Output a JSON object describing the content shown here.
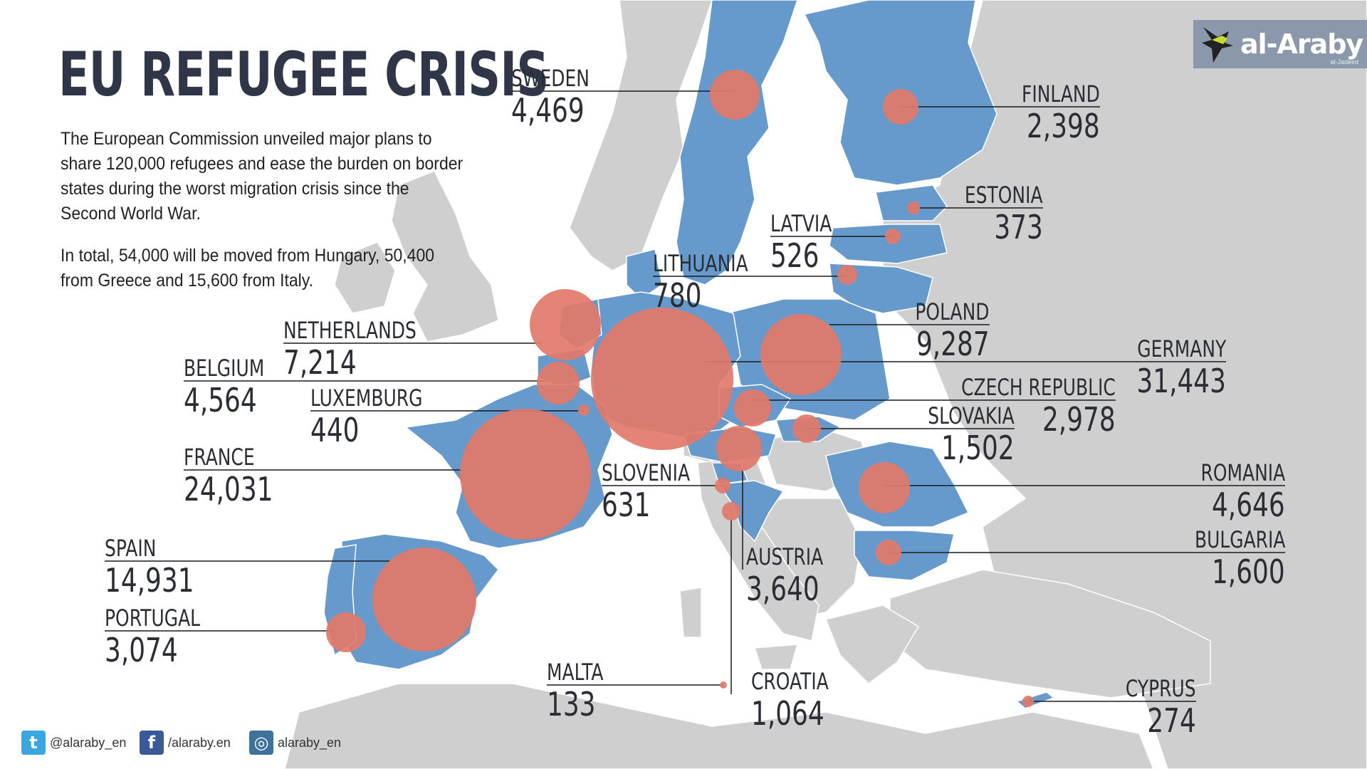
{
  "title": "EU REFUGEE CRISIS",
  "intro": [
    "The European Commission unveiled major plans to share 120,000 refugees and ease the burden on border states during the worst migration crisis since the Second World War.",
    "In total, 54,000 will be moved from Hungary, 50,400 from Greece and 15,600 from Italy."
  ],
  "colors": {
    "land": "#cfcfcf",
    "sea": "#ffffff",
    "member_state": "#6699cc",
    "bubble": "#e27a6a",
    "text": "#2a2d33"
  },
  "countries": [
    {
      "name": "SWEDEN",
      "value": "4,469"
    },
    {
      "name": "FINLAND",
      "value": "2,398"
    },
    {
      "name": "ESTONIA",
      "value": "373"
    },
    {
      "name": "LATVIA",
      "value": "526"
    },
    {
      "name": "LITHUANIA",
      "value": "780"
    },
    {
      "name": "POLAND",
      "value": "9,287"
    },
    {
      "name": "GERMANY",
      "value": "31,443"
    },
    {
      "name": "CZECH REPUBLIC",
      "value": "2,978"
    },
    {
      "name": "SLOVAKIA",
      "value": "1,502"
    },
    {
      "name": "NETHERLANDS",
      "value": "7,214"
    },
    {
      "name": "BELGIUM",
      "value": "4,564"
    },
    {
      "name": "LUXEMBURG",
      "value": "440"
    },
    {
      "name": "FRANCE",
      "value": "24,031"
    },
    {
      "name": "SLOVENIA",
      "value": "631"
    },
    {
      "name": "ROMANIA",
      "value": "4,646"
    },
    {
      "name": "BULGARIA",
      "value": "1,600"
    },
    {
      "name": "AUSTRIA",
      "value": "3,640"
    },
    {
      "name": "SPAIN",
      "value": "14,931"
    },
    {
      "name": "PORTUGAL",
      "value": "3,074"
    },
    {
      "name": "MALTA",
      "value": "133"
    },
    {
      "name": "CROATIA",
      "value": "1,064"
    },
    {
      "name": "CYPRUS",
      "value": "274"
    }
  ],
  "logo": {
    "text": "al-Araby",
    "sub": "al-Jadeed"
  },
  "social": [
    {
      "icon": "twitter-icon",
      "text": "@alaraby_en"
    },
    {
      "icon": "facebook-icon",
      "text": "/alaraby.en"
    },
    {
      "icon": "instagram-icon",
      "text": "alaraby_en"
    }
  ]
}
